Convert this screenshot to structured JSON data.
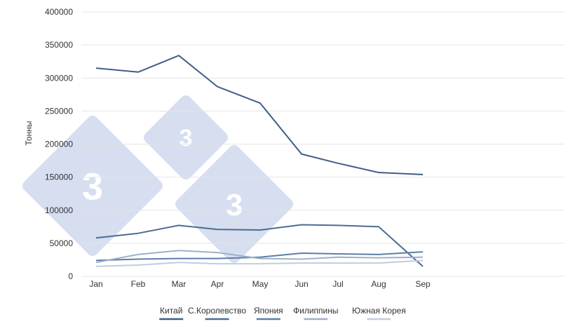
{
  "chart_data": {
    "type": "line",
    "title": "",
    "xlabel": "",
    "ylabel": "Тонны",
    "categories": [
      "Jan",
      "Feb",
      "Mar",
      "Apr",
      "May",
      "Jun",
      "Jul",
      "Aug",
      "Sep"
    ],
    "ylim": [
      0,
      400000
    ],
    "yticks": [
      "0",
      "50000",
      "100000",
      "150000",
      "200000",
      "250000",
      "300000",
      "350000",
      "400000"
    ],
    "grid": true,
    "legend_position": "bottom",
    "series": [
      {
        "name": "Китай",
        "color": "#3e5f87",
        "values": [
          315000,
          309000,
          334000,
          287000,
          262000,
          185000,
          171000,
          157000,
          154000
        ]
      },
      {
        "name": "С.Королевство",
        "color": "#4a6d96",
        "values": [
          58000,
          65000,
          77000,
          71000,
          70000,
          78000,
          77000,
          75000,
          15000
        ]
      },
      {
        "name": "Япония",
        "color": "#5d7ea8",
        "values": [
          24000,
          26000,
          27000,
          27000,
          29000,
          35000,
          34000,
          33000,
          37000
        ]
      },
      {
        "name": "Филиппины",
        "color": "#9eb0c9",
        "values": [
          21000,
          33000,
          39000,
          36000,
          27000,
          26000,
          29000,
          28000,
          29000
        ]
      },
      {
        "name": "Южная Корея",
        "color": "#c2cddd",
        "values": [
          15000,
          17000,
          21000,
          19000,
          19000,
          20000,
          20000,
          20000,
          24000
        ]
      }
    ]
  },
  "watermark": {
    "digit": "3",
    "color": "#d6def0"
  }
}
